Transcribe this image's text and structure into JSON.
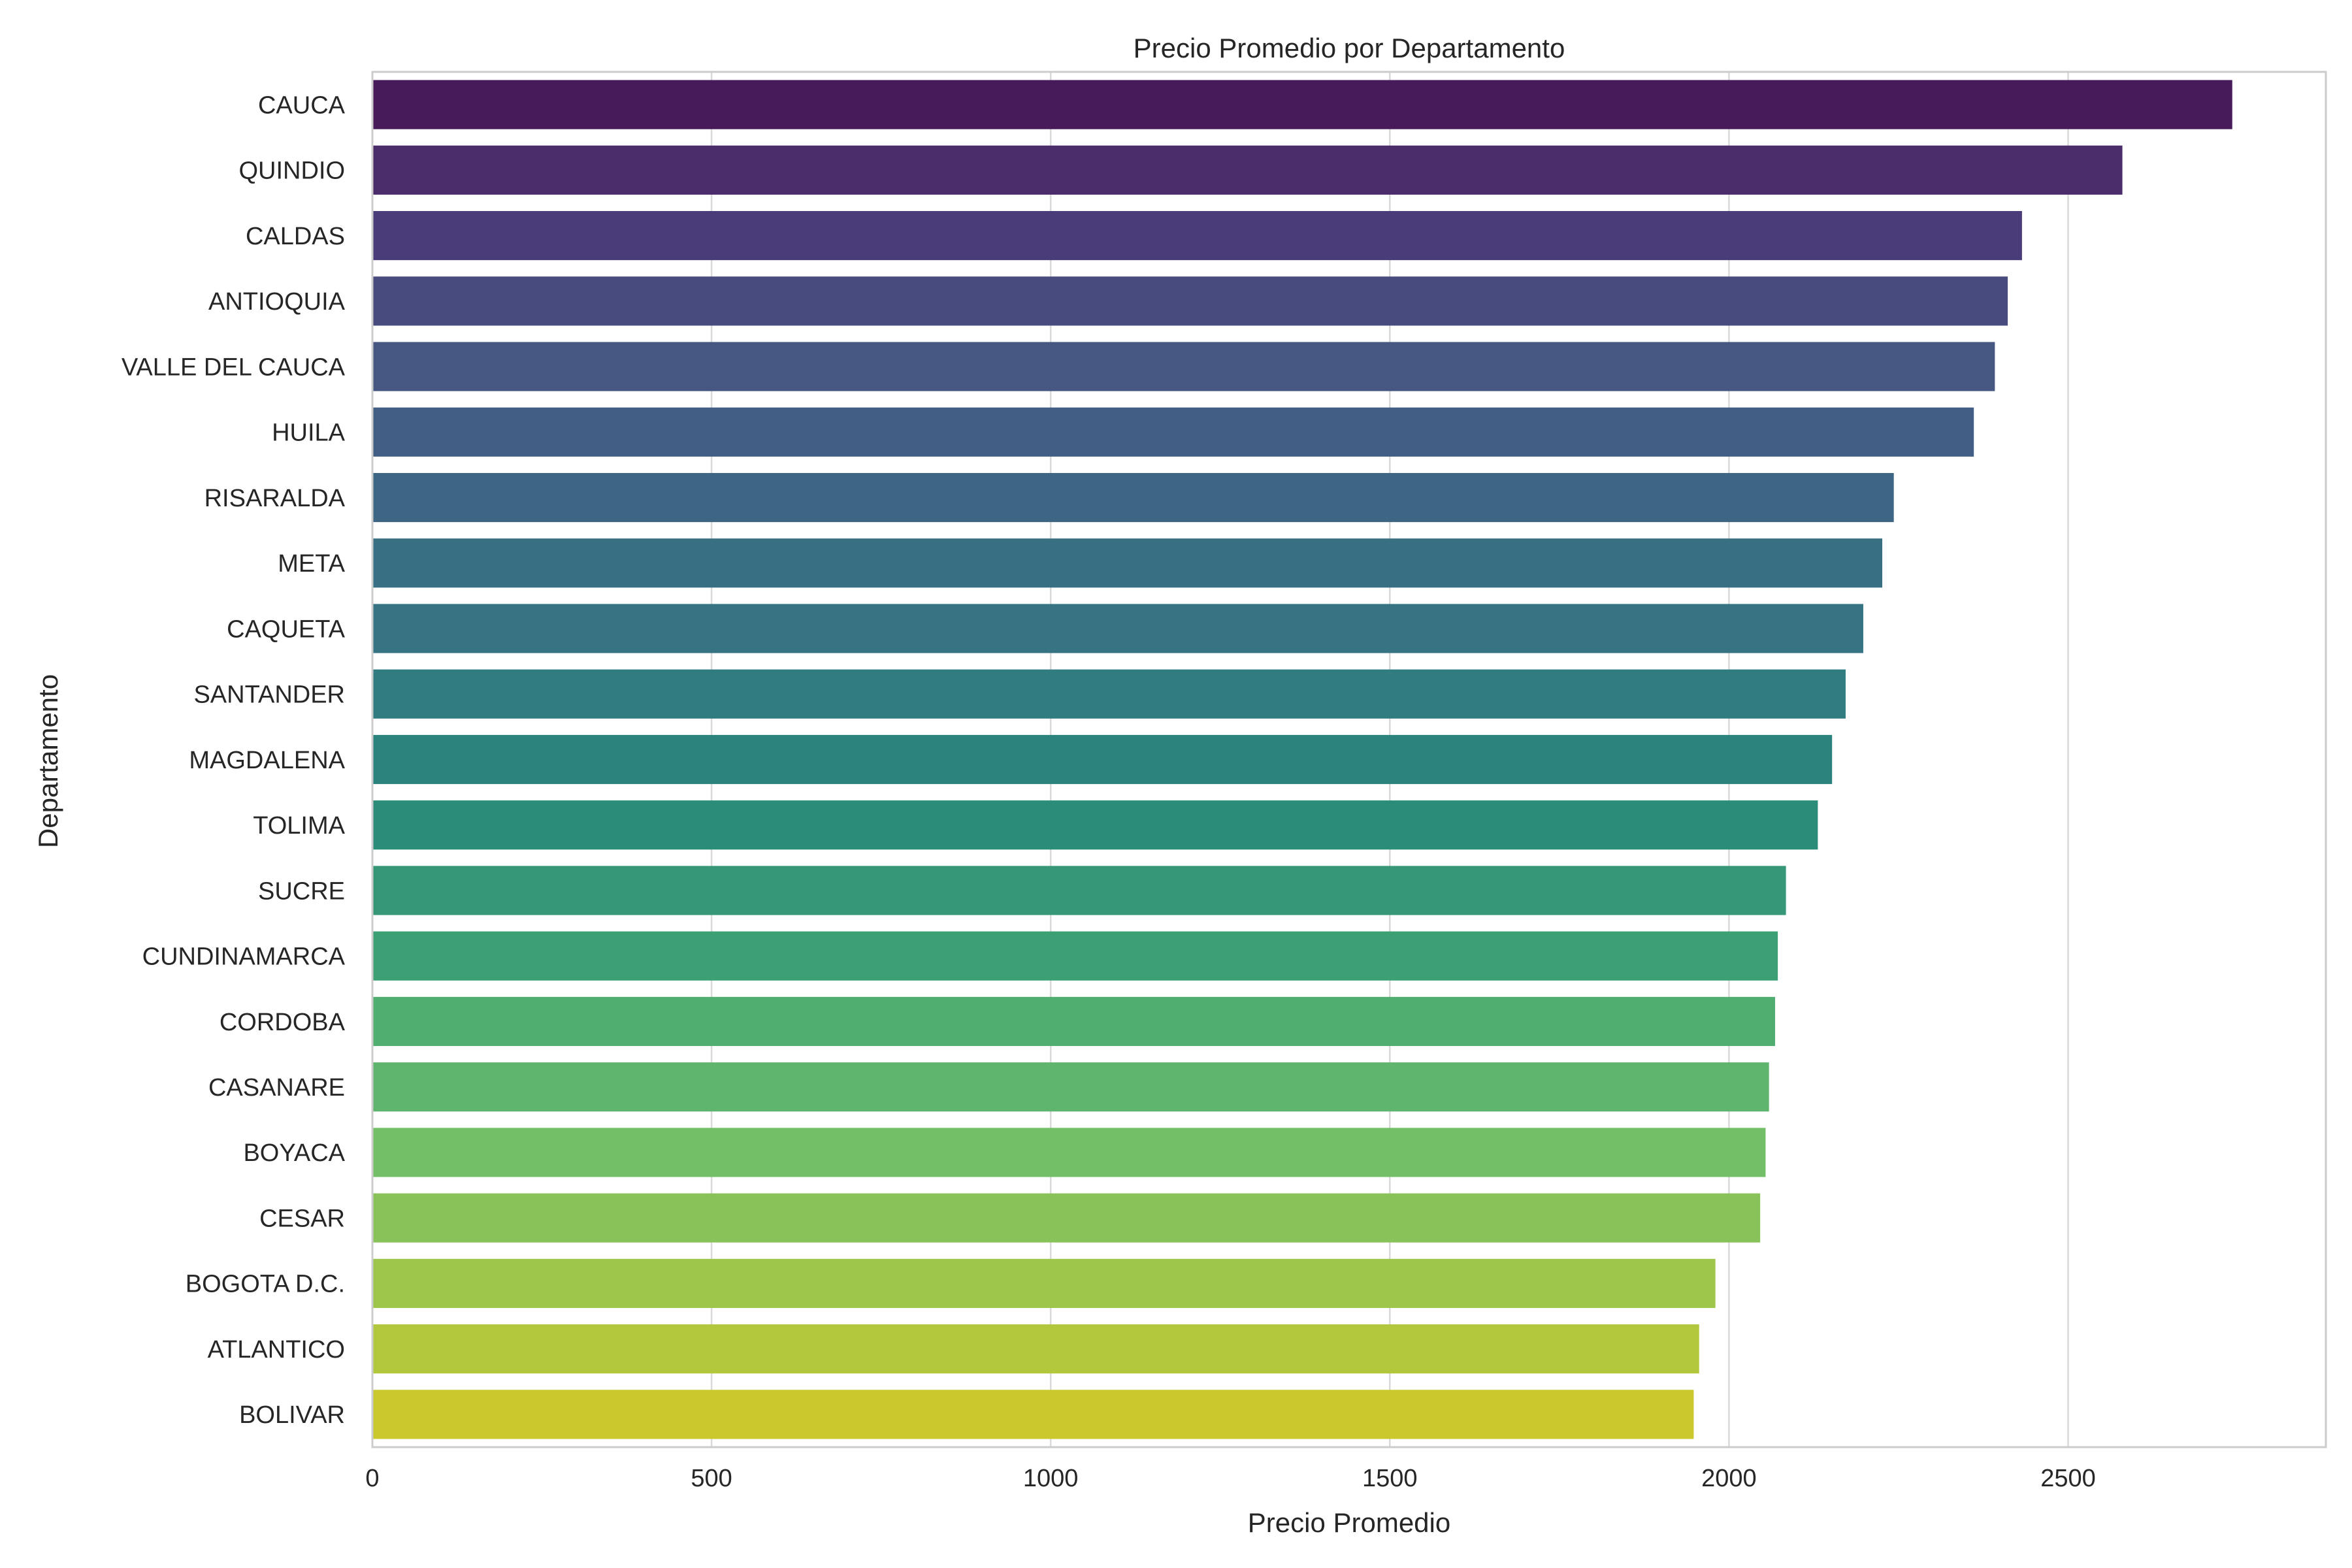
{
  "chart_data": {
    "type": "bar",
    "orientation": "horizontal",
    "title": "Precio Promedio por Departamento",
    "xlabel": "Precio Promedio",
    "ylabel": "Departamento",
    "xlim": [
      0,
      2880
    ],
    "xticks": [
      0,
      500,
      1000,
      1500,
      2000,
      2500
    ],
    "grid": "x-major",
    "colormap": "viridis",
    "categories": [
      "CAUCA",
      "QUINDIO",
      "CALDAS",
      "ANTIOQUIA",
      "VALLE DEL CAUCA",
      "HUILA",
      "RISARALDA",
      "META",
      "CAQUETA",
      "SANTANDER",
      "MAGDALENA",
      "TOLIMA",
      "SUCRE",
      "CUNDINAMARCA",
      "CORDOBA",
      "CASANARE",
      "BOYACA",
      "CESAR",
      "BOGOTA D.C.",
      "ATLANTICO",
      "BOLIVAR"
    ],
    "values": [
      2742,
      2580,
      2432,
      2411,
      2392,
      2361,
      2243,
      2226,
      2198,
      2172,
      2152,
      2131,
      2084,
      2072,
      2068,
      2059,
      2054,
      2046,
      1980,
      1956,
      1948
    ],
    "colors": [
      "#471a5a",
      "#4a2c6a",
      "#4a3b79",
      "#484b7e",
      "#465781",
      "#425e84",
      "#3d6685",
      "#396f83",
      "#377483",
      "#317c81",
      "#2c837d",
      "#2b8c7a",
      "#359778",
      "#3d9f74",
      "#4fae70",
      "#60b56e",
      "#73bf68",
      "#8ac25a",
      "#9dc64a",
      "#b2c73b",
      "#c9c92e"
    ]
  }
}
